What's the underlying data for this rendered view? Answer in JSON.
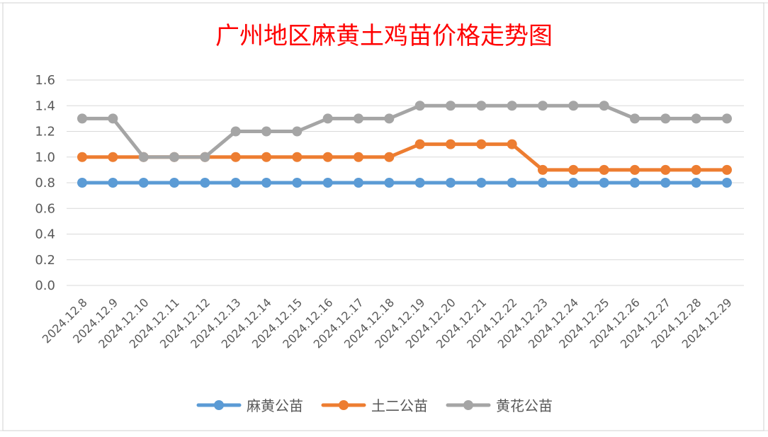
{
  "chart_data": {
    "type": "line",
    "title": "广州地区麻黄土鸡苗价格走势图",
    "xlabel": "",
    "ylabel": "",
    "ylim": [
      0,
      1.6
    ],
    "yticks": [
      "0.0",
      "0.2",
      "0.4",
      "0.6",
      "0.8",
      "1.0",
      "1.2",
      "1.4",
      "1.6"
    ],
    "grid": true,
    "legend_position": "bottom",
    "categories": [
      "2024.12.8",
      "2024.12.9",
      "2024.12.10",
      "2024.12.11",
      "2024.12.12",
      "2024.12.13",
      "2024.12.14",
      "2024.12.15",
      "2024.12.16",
      "2024.12.17",
      "2024.12.18",
      "2024.12.19",
      "2024.12.20",
      "2024.12.21",
      "2024.12.22",
      "2024.12.23",
      "2024.12.24",
      "2024.12.25",
      "2024.12.26",
      "2024.12.27",
      "2024.12.28",
      "2024.12.29"
    ],
    "series": [
      {
        "name": "麻黄公苗",
        "color": "#5b9bd5",
        "values": [
          0.8,
          0.8,
          0.8,
          0.8,
          0.8,
          0.8,
          0.8,
          0.8,
          0.8,
          0.8,
          0.8,
          0.8,
          0.8,
          0.8,
          0.8,
          0.8,
          0.8,
          0.8,
          0.8,
          0.8,
          0.8,
          0.8
        ]
      },
      {
        "name": "土二公苗",
        "color": "#ed7d31",
        "values": [
          1.0,
          1.0,
          1.0,
          1.0,
          1.0,
          1.0,
          1.0,
          1.0,
          1.0,
          1.0,
          1.0,
          1.1,
          1.1,
          1.1,
          1.1,
          0.9,
          0.9,
          0.9,
          0.9,
          0.9,
          0.9,
          0.9
        ]
      },
      {
        "name": "黄花公苗",
        "color": "#a5a5a5",
        "values": [
          1.3,
          1.3,
          1.0,
          1.0,
          1.0,
          1.2,
          1.2,
          1.2,
          1.3,
          1.3,
          1.3,
          1.4,
          1.4,
          1.4,
          1.4,
          1.4,
          1.4,
          1.4,
          1.3,
          1.3,
          1.3,
          1.3
        ]
      }
    ]
  }
}
